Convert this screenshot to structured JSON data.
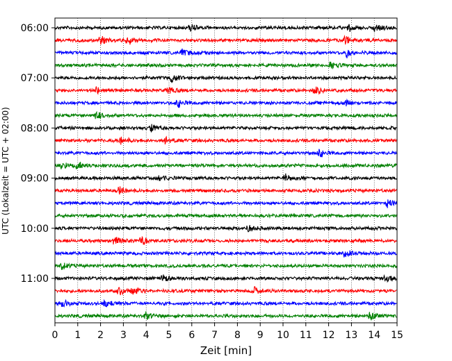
{
  "chart_data": {
    "type": "line",
    "title": "",
    "xlabel": "Zeit  [min]",
    "ylabel": "UTC (Lokalzeit = UTC + 02:00)",
    "xlim": [
      0,
      15
    ],
    "x_ticks": [
      "0",
      "1",
      "2",
      "3",
      "4",
      "5",
      "6",
      "7",
      "8",
      "9",
      "10",
      "11",
      "12",
      "13",
      "14",
      "15"
    ],
    "y_ticks": [
      "06:00",
      "07:00",
      "08:00",
      "09:00",
      "10:00",
      "11:00"
    ],
    "y_tick_rows": [
      0,
      4,
      8,
      12,
      16,
      20
    ],
    "grid": "vertical dotted",
    "colors": [
      "#000000",
      "#ff0000",
      "#0000ff",
      "#008000"
    ],
    "series": [
      {
        "start": "06:00",
        "color": "#000000",
        "events": [
          5.95,
          12.9,
          14.0
        ]
      },
      {
        "start": "06:15",
        "color": "#ff0000",
        "events": [
          2.0,
          3.2,
          12.7
        ]
      },
      {
        "start": "06:30",
        "color": "#0000ff",
        "events": [
          5.6,
          12.8
        ]
      },
      {
        "start": "06:45",
        "color": "#008000",
        "events": [
          12.1
        ]
      },
      {
        "start": "07:00",
        "color": "#000000",
        "events": [
          5.1
        ]
      },
      {
        "start": "07:15",
        "color": "#ff0000",
        "events": [
          1.8,
          4.9,
          11.4
        ]
      },
      {
        "start": "07:30",
        "color": "#0000ff",
        "events": [
          5.4,
          12.7
        ]
      },
      {
        "start": "07:45",
        "color": "#008000",
        "events": [
          1.8
        ]
      },
      {
        "start": "08:00",
        "color": "#000000",
        "events": [
          4.2
        ]
      },
      {
        "start": "08:15",
        "color": "#ff0000",
        "events": [
          2.9,
          4.8
        ]
      },
      {
        "start": "08:30",
        "color": "#0000ff",
        "events": [
          11.6
        ]
      },
      {
        "start": "08:45",
        "color": "#008000",
        "events": [
          0.3,
          1.0
        ]
      },
      {
        "start": "09:00",
        "color": "#000000",
        "events": [
          4.5,
          10.1
        ]
      },
      {
        "start": "09:15",
        "color": "#ff0000",
        "events": [
          2.8
        ]
      },
      {
        "start": "09:30",
        "color": "#0000ff",
        "events": [
          14.6
        ]
      },
      {
        "start": "09:45",
        "color": "#008000",
        "events": []
      },
      {
        "start": "10:00",
        "color": "#000000",
        "events": [
          8.5
        ]
      },
      {
        "start": "10:15",
        "color": "#ff0000",
        "events": [
          2.6,
          3.8
        ]
      },
      {
        "start": "10:30",
        "color": "#0000ff",
        "events": [
          12.7
        ]
      },
      {
        "start": "10:45",
        "color": "#008000",
        "events": [
          0.3
        ]
      },
      {
        "start": "11:00",
        "color": "#000000",
        "events": [
          4.7,
          14.5
        ]
      },
      {
        "start": "11:15",
        "color": "#ff0000",
        "events": [
          2.8,
          3.4,
          8.7
        ]
      },
      {
        "start": "11:30",
        "color": "#0000ff",
        "events": [
          0.3,
          2.2
        ]
      },
      {
        "start": "11:45",
        "color": "#008000",
        "events": [
          4.0,
          13.8
        ]
      }
    ]
  }
}
